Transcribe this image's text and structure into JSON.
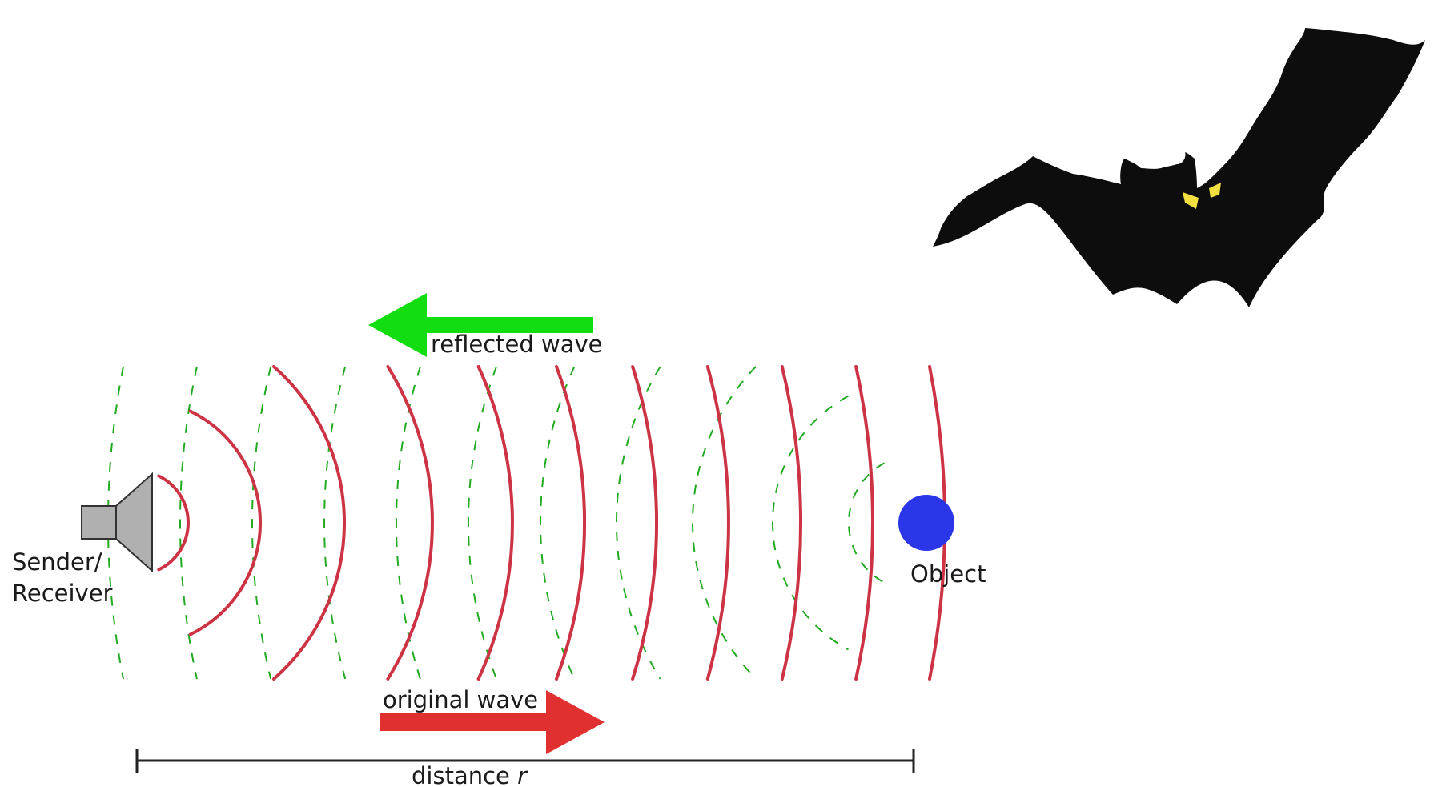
{
  "labels": {
    "sender": "Sender/",
    "receiver": "Receiver",
    "object": "Object",
    "reflected_wave": "reflected wave",
    "original_wave": "original wave",
    "distance": "distance ",
    "distance_var": "r"
  },
  "colors": {
    "original_wave": "#cc3344",
    "reflected_wave": "#22aa22",
    "reflected_arrow": "#11dd11",
    "original_arrow": "#e03030",
    "object": "#2a36e8",
    "speaker_body": "#b0b0b0",
    "bat": "#0d0d0d",
    "bat_eyes": "#f2e040"
  },
  "icons": {
    "speaker": "speaker-icon",
    "bat": "bat-icon",
    "object": "object-circle"
  }
}
